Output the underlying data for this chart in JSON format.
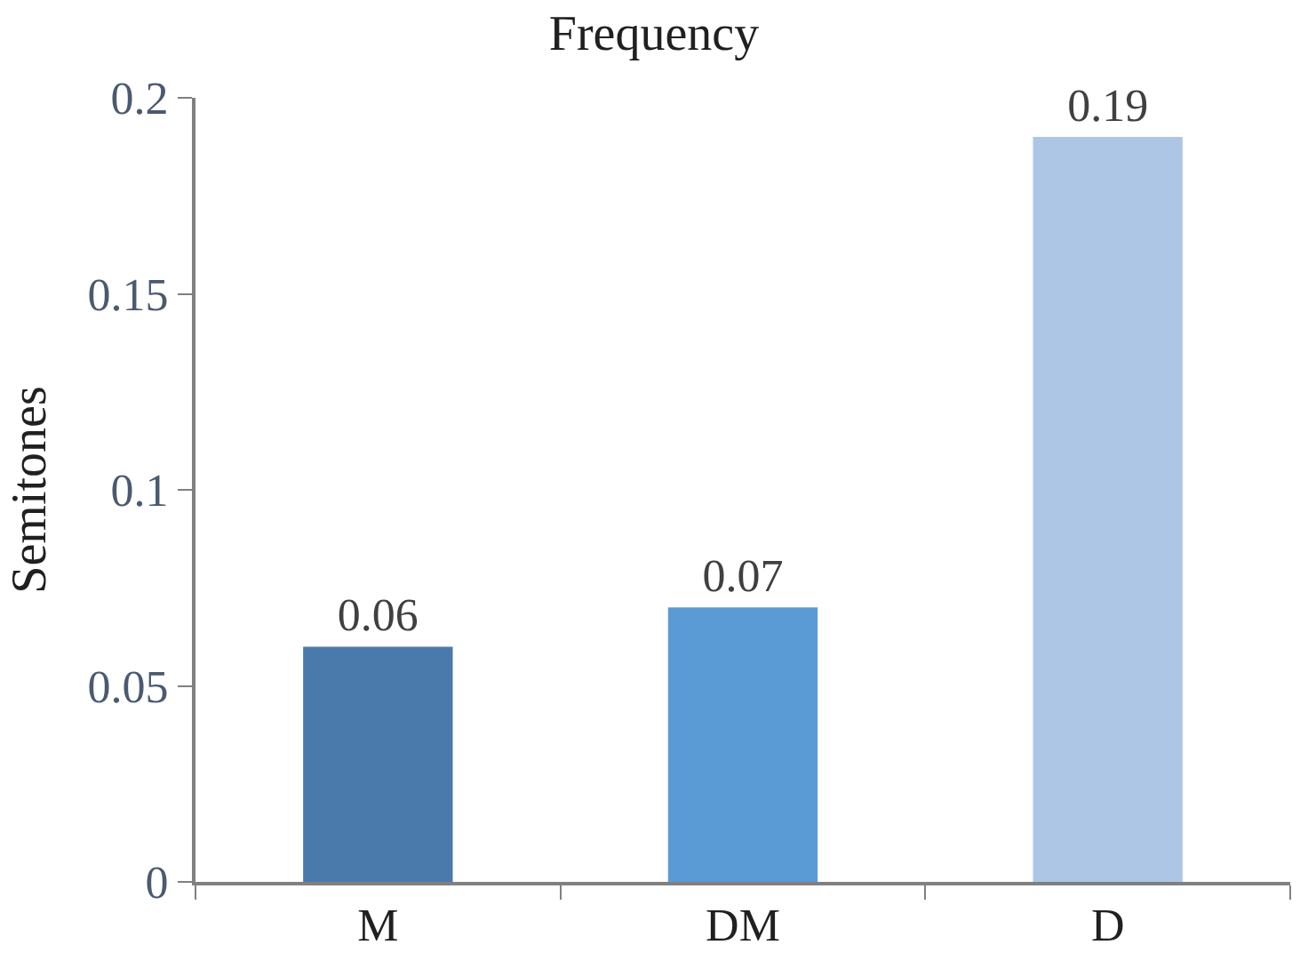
{
  "chart_data": {
    "type": "bar",
    "title": "Frequency",
    "ylabel": "Semitones",
    "categories": [
      "M",
      "DM",
      "D"
    ],
    "values": [
      0.06,
      0.07,
      0.19
    ],
    "colors": [
      "#4a7aab",
      "#5b9bd5",
      "#adc6e6"
    ],
    "ylim": [
      0,
      0.2
    ],
    "yticks": [
      0,
      0.05,
      0.1,
      0.15,
      0.2
    ],
    "legend": false,
    "data_labels": true
  }
}
